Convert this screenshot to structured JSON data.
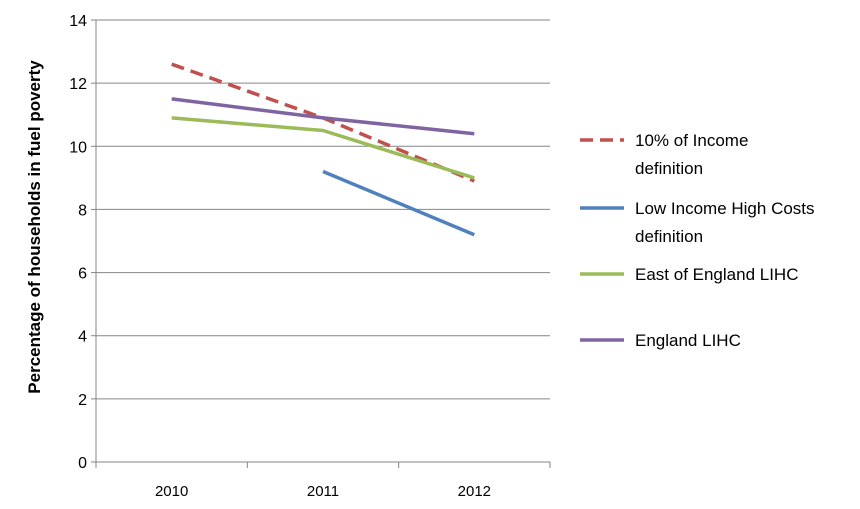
{
  "chart_data": {
    "type": "line",
    "categories": [
      "2010",
      "2011",
      "2012"
    ],
    "ylabel": "Percentage of households in fuel poverty",
    "ylim": [
      0,
      14
    ],
    "yticks": [
      0,
      2,
      4,
      6,
      8,
      10,
      12,
      14
    ],
    "grid": true,
    "legend_position": "right",
    "series": [
      {
        "name": "10% of Income definition",
        "legend_lines": [
          "10% of Income",
          "definition"
        ],
        "color": "#c0504d",
        "dashed": true,
        "values": [
          12.6,
          10.9,
          8.9
        ]
      },
      {
        "name": "Low Income High Costs definition",
        "legend_lines": [
          "Low Income High Costs",
          "definition"
        ],
        "color": "#4f81bd",
        "dashed": false,
        "values": [
          null,
          9.2,
          7.2
        ]
      },
      {
        "name": "East of England LIHC",
        "legend_lines": [
          "East of England LIHC"
        ],
        "color": "#9bbb59",
        "dashed": false,
        "values": [
          10.9,
          10.5,
          9.0
        ]
      },
      {
        "name": "England LIHC",
        "legend_lines": [
          "England LIHC"
        ],
        "color": "#8064a2",
        "dashed": false,
        "values": [
          11.5,
          10.9,
          10.4
        ]
      }
    ]
  }
}
